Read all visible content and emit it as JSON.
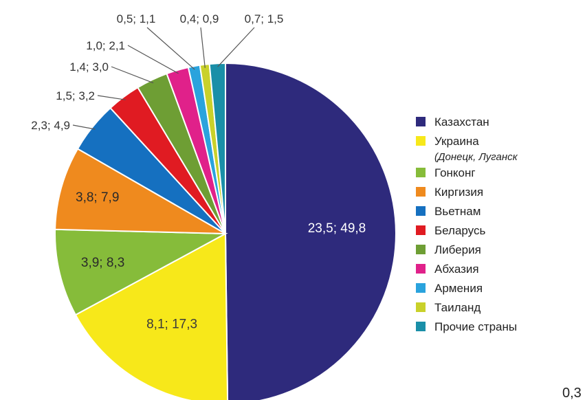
{
  "chart_data": {
    "type": "pie",
    "title": "",
    "legend_position": "right",
    "slices": [
      {
        "name": "Казахстан",
        "value": 23.5,
        "percent": 49.8,
        "label": "23,5; 49,8",
        "color": "#2e2a7c",
        "label_color": "#ffffff",
        "label_inside": true
      },
      {
        "name": "Украина",
        "name_sub": "(Донецк, Луганск",
        "value": 8.1,
        "percent": 17.3,
        "label": "8,1; 17,3",
        "color": "#f7e81a",
        "label_color": "#3a3a3a",
        "label_inside": true
      },
      {
        "name": "Гонконг",
        "value": 3.9,
        "percent": 8.3,
        "label": "3,9; 8,3",
        "color": "#86bc3a",
        "label_color": "#2a2a2a",
        "label_inside": true
      },
      {
        "name": "Киргизия",
        "value": 3.8,
        "percent": 7.9,
        "label": "3,8; 7,9",
        "color": "#ef8a1e",
        "label_color": "#2a2a2a",
        "label_inside": true
      },
      {
        "name": "Вьетнам",
        "value": 2.3,
        "percent": 4.9,
        "label": "2,3; 4,9",
        "color": "#1570c0",
        "label_color": "#333333",
        "label_inside": false
      },
      {
        "name": "Беларусь",
        "value": 1.5,
        "percent": 3.2,
        "label": "1,5; 3,2",
        "color": "#e01b22",
        "label_color": "#333333",
        "label_inside": false
      },
      {
        "name": "Либерия",
        "value": 1.4,
        "percent": 3.0,
        "label": "1,4; 3,0",
        "color": "#6e9e34",
        "label_color": "#333333",
        "label_inside": false
      },
      {
        "name": "Абхазия",
        "value": 1.0,
        "percent": 2.1,
        "label": "1,0; 2,1",
        "color": "#e0218a",
        "label_color": "#333333",
        "label_inside": false
      },
      {
        "name": "Армения",
        "value": 0.5,
        "percent": 1.1,
        "label": "0,5; 1,1",
        "color": "#2aa3dd",
        "label_color": "#333333",
        "label_inside": false
      },
      {
        "name": "Таиланд",
        "value": 0.4,
        "percent": 0.9,
        "label": "0,4; 0,9",
        "color": "#c9d12a",
        "label_color": "#333333",
        "label_inside": false
      },
      {
        "name": "Прочие страны",
        "value": 0.7,
        "percent": 1.5,
        "label": "0,7; 1,5",
        "color": "#1a8fa8",
        "label_color": "#333333",
        "label_inside": false
      }
    ],
    "corner_text": "0,3"
  }
}
